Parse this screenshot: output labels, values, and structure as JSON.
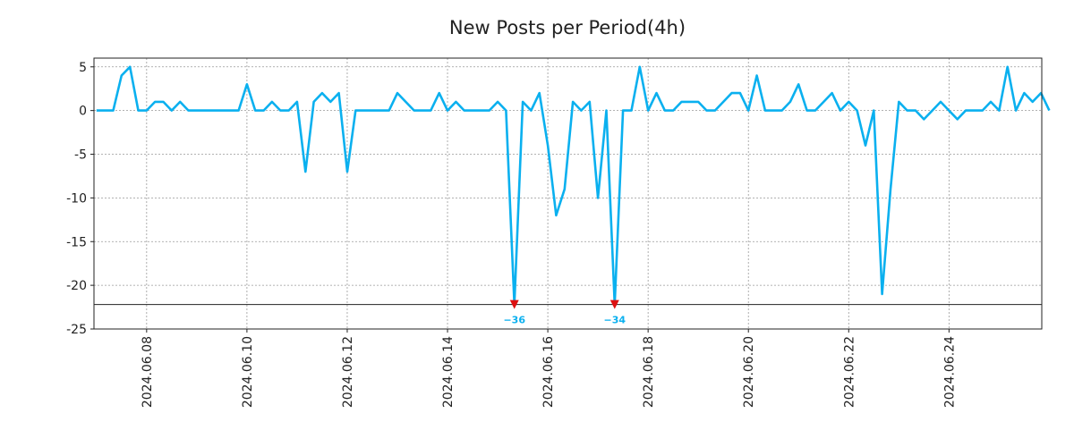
{
  "chart_data": {
    "type": "line",
    "title": "New Posts per Period(4h)",
    "xlabel": "",
    "ylabel": "",
    "ylim": [
      -25,
      6
    ],
    "y_ticks": [
      5,
      0,
      -5,
      -10,
      -15,
      -20,
      -25
    ],
    "x_ticks": [
      "2024.06.08",
      "2024.06.10",
      "2024.06.12",
      "2024.06.14",
      "2024.06.16",
      "2024.06.18",
      "2024.06.20",
      "2024.06.22",
      "2024.06.24"
    ],
    "x_tick_day_offsets": [
      1,
      3,
      5,
      7,
      9,
      11,
      13,
      15,
      17
    ],
    "x_range_days": [
      -0.05,
      18.85
    ],
    "start_date": "2024.06.07",
    "period_hours": 4,
    "grid": true,
    "clip_floor": -22.2,
    "series": [
      {
        "name": "New Posts",
        "color": "#0ab0ef",
        "values": [
          0,
          0,
          0,
          4,
          5,
          0,
          0,
          1,
          1,
          0,
          1,
          0,
          0,
          0,
          0,
          0,
          0,
          0,
          3,
          0,
          0,
          1,
          0,
          0,
          1,
          -7,
          1,
          2,
          1,
          2,
          -7,
          0,
          0,
          0,
          0,
          0,
          2,
          1,
          0,
          0,
          0,
          2,
          0,
          1,
          0,
          0,
          0,
          0,
          1,
          0,
          -36,
          1,
          0,
          2,
          -4,
          -12,
          -9,
          1,
          0,
          1,
          -10,
          0,
          -34,
          0,
          0,
          5,
          0,
          2,
          0,
          0,
          1,
          1,
          1,
          0,
          0,
          1,
          2,
          2,
          0,
          4,
          0,
          0,
          0,
          1,
          3,
          0,
          0,
          1,
          2,
          0,
          1,
          0,
          -4,
          0,
          -21,
          -9,
          1,
          0,
          0,
          -1,
          0,
          1,
          0,
          -1,
          0,
          0,
          0,
          1,
          0,
          5,
          0,
          2,
          1,
          2,
          0
        ]
      }
    ],
    "annotations": [
      {
        "index": 50,
        "label": "−36",
        "marker_color": "#dd1111",
        "text_color": "#0ab0ef"
      },
      {
        "index": 62,
        "label": "−34",
        "marker_color": "#dd1111",
        "text_color": "#0ab0ef"
      }
    ]
  }
}
